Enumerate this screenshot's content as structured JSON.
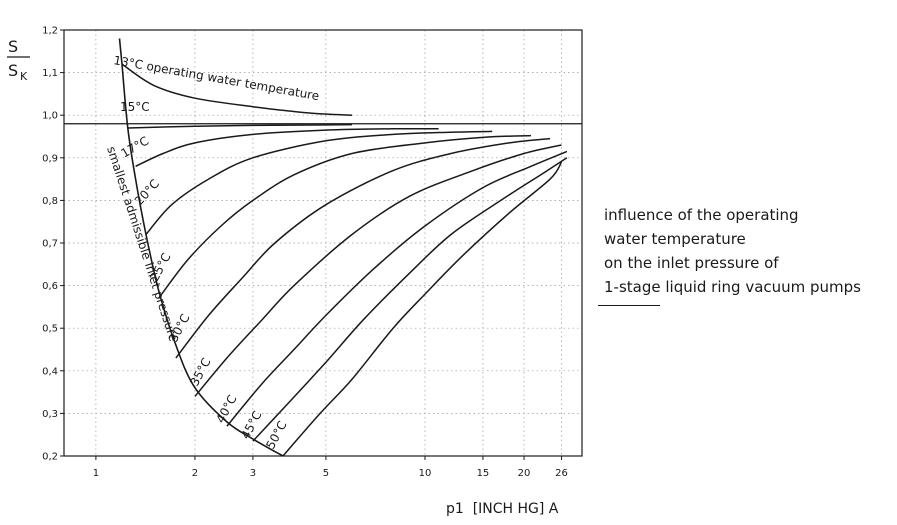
{
  "chart_data": {
    "type": "line",
    "title": "",
    "xlabel": "p1  [INCH HG] A",
    "ylabel": {
      "numerator": "S",
      "denominator": "S",
      "subscript": "K"
    },
    "x_scale": "log",
    "xlim": [
      0.8,
      30
    ],
    "ylim": [
      0.2,
      1.2
    ],
    "x_ticks": [
      1,
      2,
      3,
      5,
      10,
      15,
      20,
      26
    ],
    "x_tick_labels": [
      "1",
      "2",
      "3",
      "5",
      "10",
      "15",
      "20",
      "26"
    ],
    "y_ticks": [
      0.2,
      0.3,
      0.4,
      0.5,
      0.6,
      0.7,
      0.8,
      0.9,
      1.0,
      1.1,
      1.2
    ],
    "y_tick_labels": [
      "0,2",
      "0,3",
      "0,4",
      "0,5",
      "0,6",
      "0,7",
      "0,8",
      "0,9",
      "1,0",
      "1,1",
      "1,2"
    ],
    "grid": true,
    "reference_line": {
      "y": 0.98
    },
    "boundary": {
      "name": "smallest admissible inlet pressure",
      "x": [
        1.18,
        1.2,
        1.25,
        1.32,
        1.42,
        1.55,
        1.75,
        2.0,
        2.5,
        3.0,
        3.7
      ],
      "y": [
        1.18,
        1.12,
        0.97,
        0.85,
        0.72,
        0.59,
        0.46,
        0.36,
        0.28,
        0.24,
        0.2
      ]
    },
    "series": [
      {
        "name": "13°C operating water temperature",
        "x": [
          1.2,
          1.5,
          2.0,
          3.0,
          4.5,
          6.0
        ],
        "y": [
          1.12,
          1.07,
          1.04,
          1.02,
          1.005,
          1.0
        ]
      },
      {
        "name": "15°C",
        "x": [
          1.25,
          2.0,
          3.0,
          4.5,
          6.0
        ],
        "y": [
          0.97,
          0.974,
          0.976,
          0.977,
          0.978
        ]
      },
      {
        "name": "17°C",
        "x": [
          1.32,
          1.6,
          2.0,
          3.0,
          5.0,
          8.0,
          11.0
        ],
        "y": [
          0.88,
          0.91,
          0.935,
          0.955,
          0.965,
          0.968,
          0.968
        ]
      },
      {
        "name": "20°C",
        "x": [
          1.42,
          1.7,
          2.2,
          3.0,
          5.0,
          8.0,
          12.0,
          16.0
        ],
        "y": [
          0.72,
          0.79,
          0.85,
          0.9,
          0.94,
          0.955,
          0.96,
          0.962
        ]
      },
      {
        "name": "25°C",
        "x": [
          1.55,
          1.9,
          2.4,
          3.0,
          4.0,
          6.0,
          10.0,
          15.0,
          21.0
        ],
        "y": [
          0.57,
          0.66,
          0.74,
          0.8,
          0.86,
          0.91,
          0.935,
          0.948,
          0.952
        ]
      },
      {
        "name": "30°C",
        "x": [
          1.75,
          2.2,
          2.8,
          3.5,
          5.0,
          8.0,
          12.0,
          18.0,
          24.0
        ],
        "y": [
          0.43,
          0.53,
          0.62,
          0.7,
          0.79,
          0.87,
          0.91,
          0.935,
          0.945
        ]
      },
      {
        "name": "35°C",
        "x": [
          2.0,
          2.5,
          3.2,
          4.0,
          6.0,
          9.0,
          14.0,
          20.0,
          26.0
        ],
        "y": [
          0.34,
          0.43,
          0.52,
          0.6,
          0.72,
          0.81,
          0.87,
          0.91,
          0.93
        ]
      },
      {
        "name": "40°C",
        "x": [
          2.5,
          3.2,
          4.0,
          5.0,
          7.0,
          10.0,
          15.0,
          21.0,
          27.0
        ],
        "y": [
          0.27,
          0.37,
          0.45,
          0.53,
          0.64,
          0.74,
          0.83,
          0.88,
          0.915
        ]
      },
      {
        "name": "45°C",
        "x": [
          3.0,
          3.8,
          5.0,
          6.5,
          9.0,
          12.0,
          17.0,
          23.0,
          27.0
        ],
        "y": [
          0.235,
          0.32,
          0.42,
          0.52,
          0.63,
          0.72,
          0.8,
          0.865,
          0.9
        ]
      },
      {
        "name": "50°C",
        "x": [
          3.7,
          4.8,
          6.0,
          8.0,
          10.0,
          13.0,
          18.0,
          24.0,
          26.0
        ],
        "y": [
          0.2,
          0.3,
          0.38,
          0.5,
          0.58,
          0.67,
          0.77,
          0.85,
          0.89
        ]
      }
    ]
  },
  "curve_labels": {
    "t13": "13°C operating water temperature",
    "t15": "15°C",
    "t17": "17°C",
    "t20": "20°C",
    "t25": "25°C",
    "t30": "30°C",
    "t35": "35°C",
    "t40": "40°C",
    "t45": "45°C",
    "t50": "50°C",
    "boundary": "smallest admissible inlet pressure"
  },
  "note": {
    "line1": "influence of the operating",
    "line2": "water temperature",
    "line3": "on the inlet pressure of",
    "line4": "1-stage liquid ring vacuum pumps"
  }
}
